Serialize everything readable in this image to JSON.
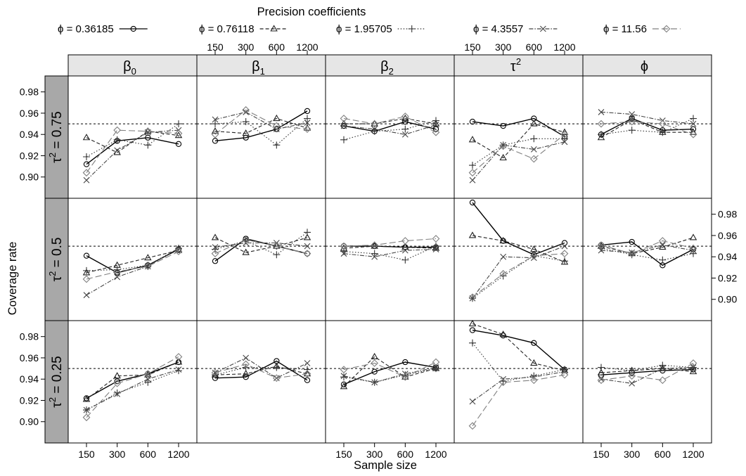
{
  "chart_data": {
    "type": "line",
    "title": "Precision coefficients",
    "xlabel": "Sample size",
    "ylabel": "Coverage rate",
    "x": [
      150,
      300,
      600,
      1200
    ],
    "x_tick_labels": [
      "150",
      "300",
      "600",
      "1200"
    ],
    "ylim": [
      0.88,
      0.995
    ],
    "y_ticks": [
      0.9,
      0.92,
      0.94,
      0.96,
      0.98
    ],
    "y_tick_labels": [
      "0.90",
      "0.92",
      "0.94",
      "0.96",
      "0.98"
    ],
    "reference_line": 0.95,
    "columns": [
      {
        "base": "β",
        "sub": "0",
        "sup": ""
      },
      {
        "base": "β",
        "sub": "1",
        "sup": ""
      },
      {
        "base": "β",
        "sub": "2",
        "sup": ""
      },
      {
        "base": "τ",
        "sub": "",
        "sup": "2"
      },
      {
        "base": "ϕ",
        "sub": "",
        "sup": ""
      }
    ],
    "rows": [
      {
        "base": "τ",
        "sup": "2",
        "rest": " = 0.75"
      },
      {
        "base": "τ",
        "sup": "2",
        "rest": " = 0.5"
      },
      {
        "base": "τ",
        "sup": "2",
        "rest": " = 0.25"
      }
    ],
    "series": [
      {
        "label": "ϕ = 0.36185",
        "color": "#000000",
        "dash": "",
        "marker": "circle"
      },
      {
        "label": "ϕ = 0.76118",
        "color": "#222222",
        "dash": "5,3",
        "marker": "triangle"
      },
      {
        "label": "ϕ = 1.95705",
        "color": "#333333",
        "dash": "1.5,2.5",
        "marker": "plus"
      },
      {
        "label": "ϕ = 4.3557",
        "color": "#444444",
        "dash": "6,2,1.5,2",
        "marker": "cross"
      },
      {
        "label": "ϕ = 11.56",
        "color": "#808080",
        "dash": "9,4",
        "marker": "diamond"
      }
    ],
    "values": [
      [
        [
          [
            0.912,
            0.934,
            0.937,
            0.931
          ],
          [
            0.937,
            0.923,
            0.943,
            0.939
          ],
          [
            0.919,
            0.935,
            0.93,
            0.95
          ],
          [
            0.897,
            0.925,
            0.942,
            0.944
          ],
          [
            0.904,
            0.944,
            0.943,
            0.941
          ]
        ],
        [
          [
            0.934,
            0.937,
            0.945,
            0.962
          ],
          [
            0.943,
            0.941,
            0.955,
            0.946
          ],
          [
            0.95,
            0.952,
            0.93,
            0.955
          ],
          [
            0.954,
            0.961,
            0.945,
            0.951
          ],
          [
            0.94,
            0.963,
            0.948,
            0.945
          ]
        ],
        [
          [
            0.948,
            0.943,
            0.952,
            0.945
          ],
          [
            0.95,
            0.95,
            0.955,
            0.95
          ],
          [
            0.935,
            0.943,
            0.945,
            0.953
          ],
          [
            0.948,
            0.945,
            0.94,
            0.949
          ],
          [
            0.955,
            0.95,
            0.957,
            0.942
          ]
        ],
        [
          [
            0.952,
            0.948,
            0.955,
            0.938
          ],
          [
            0.935,
            0.918,
            0.95,
            0.942
          ],
          [
            0.911,
            0.93,
            0.936,
            0.936
          ],
          [
            0.897,
            0.93,
            0.926,
            0.933
          ],
          [
            0.904,
            0.929,
            0.917,
            0.94
          ]
        ],
        [
          [
            0.94,
            0.955,
            0.944,
            0.945
          ],
          [
            0.937,
            0.954,
            0.942,
            0.942
          ],
          [
            0.94,
            0.944,
            0.942,
            0.955
          ],
          [
            0.961,
            0.959,
            0.953,
            0.95
          ],
          [
            0.95,
            0.952,
            0.95,
            0.94
          ]
        ]
      ],
      [
        [
          [
            0.941,
            0.925,
            0.932,
            0.947
          ],
          [
            0.925,
            0.932,
            0.939,
            0.946
          ],
          [
            0.927,
            0.928,
            0.932,
            0.948
          ],
          [
            0.904,
            0.921,
            0.931,
            0.948
          ],
          [
            0.919,
            0.926,
            0.931,
            0.945
          ]
        ],
        [
          [
            0.936,
            0.957,
            0.95,
            0.943
          ],
          [
            0.958,
            0.944,
            0.95,
            0.958
          ],
          [
            0.947,
            0.955,
            0.942,
            0.963
          ],
          [
            0.949,
            0.953,
            0.953,
            0.95
          ],
          [
            0.943,
            0.956,
            0.95,
            0.943
          ]
        ],
        [
          [
            0.95,
            0.95,
            0.949,
            0.949
          ],
          [
            0.948,
            0.95,
            0.949,
            0.948
          ],
          [
            0.945,
            0.943,
            0.937,
            0.95
          ],
          [
            0.943,
            0.94,
            0.946,
            0.947
          ],
          [
            0.95,
            0.951,
            0.955,
            0.957
          ]
        ],
        [
          [
            0.991,
            0.955,
            0.942,
            0.953
          ],
          [
            0.96,
            0.955,
            0.947,
            0.935
          ],
          [
            0.901,
            0.922,
            0.941,
            0.936
          ],
          [
            0.901,
            0.94,
            0.939,
            0.95
          ],
          [
            0.902,
            0.924,
            0.941,
            0.943
          ]
        ],
        [
          [
            0.951,
            0.954,
            0.932,
            0.947
          ],
          [
            0.95,
            0.943,
            0.949,
            0.958
          ],
          [
            0.948,
            0.942,
            0.937,
            0.943
          ],
          [
            0.946,
            0.944,
            0.951,
            0.946
          ],
          [
            0.951,
            0.943,
            0.955,
            0.948
          ]
        ]
      ],
      [
        [
          [
            0.922,
            0.938,
            0.945,
            0.956
          ],
          [
            0.921,
            0.943,
            0.944,
            0.956
          ],
          [
            0.911,
            0.927,
            0.937,
            0.948
          ],
          [
            0.911,
            0.926,
            0.94,
            0.949
          ],
          [
            0.904,
            0.936,
            0.945,
            0.961
          ]
        ],
        [
          [
            0.941,
            0.942,
            0.957,
            0.939
          ],
          [
            0.944,
            0.945,
            0.952,
            0.945
          ],
          [
            0.944,
            0.951,
            0.951,
            0.949
          ],
          [
            0.946,
            0.96,
            0.941,
            0.955
          ],
          [
            0.946,
            0.954,
            0.941,
            0.945
          ]
        ],
        [
          [
            0.935,
            0.947,
            0.956,
            0.951
          ],
          [
            0.933,
            0.961,
            0.942,
            0.95
          ],
          [
            0.942,
            0.937,
            0.944,
            0.95
          ],
          [
            0.943,
            0.937,
            0.945,
            0.951
          ],
          [
            0.949,
            0.955,
            0.942,
            0.956
          ]
        ],
        [
          [
            0.986,
            0.981,
            0.974,
            0.949
          ],
          [
            0.992,
            0.982,
            0.955,
            0.948
          ],
          [
            0.974,
            0.938,
            0.943,
            0.949
          ],
          [
            0.919,
            0.94,
            0.942,
            0.947
          ],
          [
            0.896,
            0.937,
            0.939,
            0.944
          ]
        ],
        [
          [
            0.944,
            0.946,
            0.948,
            0.949
          ],
          [
            0.946,
            0.948,
            0.95,
            0.947
          ],
          [
            0.951,
            0.948,
            0.953,
            0.951
          ],
          [
            0.94,
            0.936,
            0.95,
            0.951
          ],
          [
            0.939,
            0.943,
            0.939,
            0.955
          ]
        ]
      ]
    ]
  }
}
